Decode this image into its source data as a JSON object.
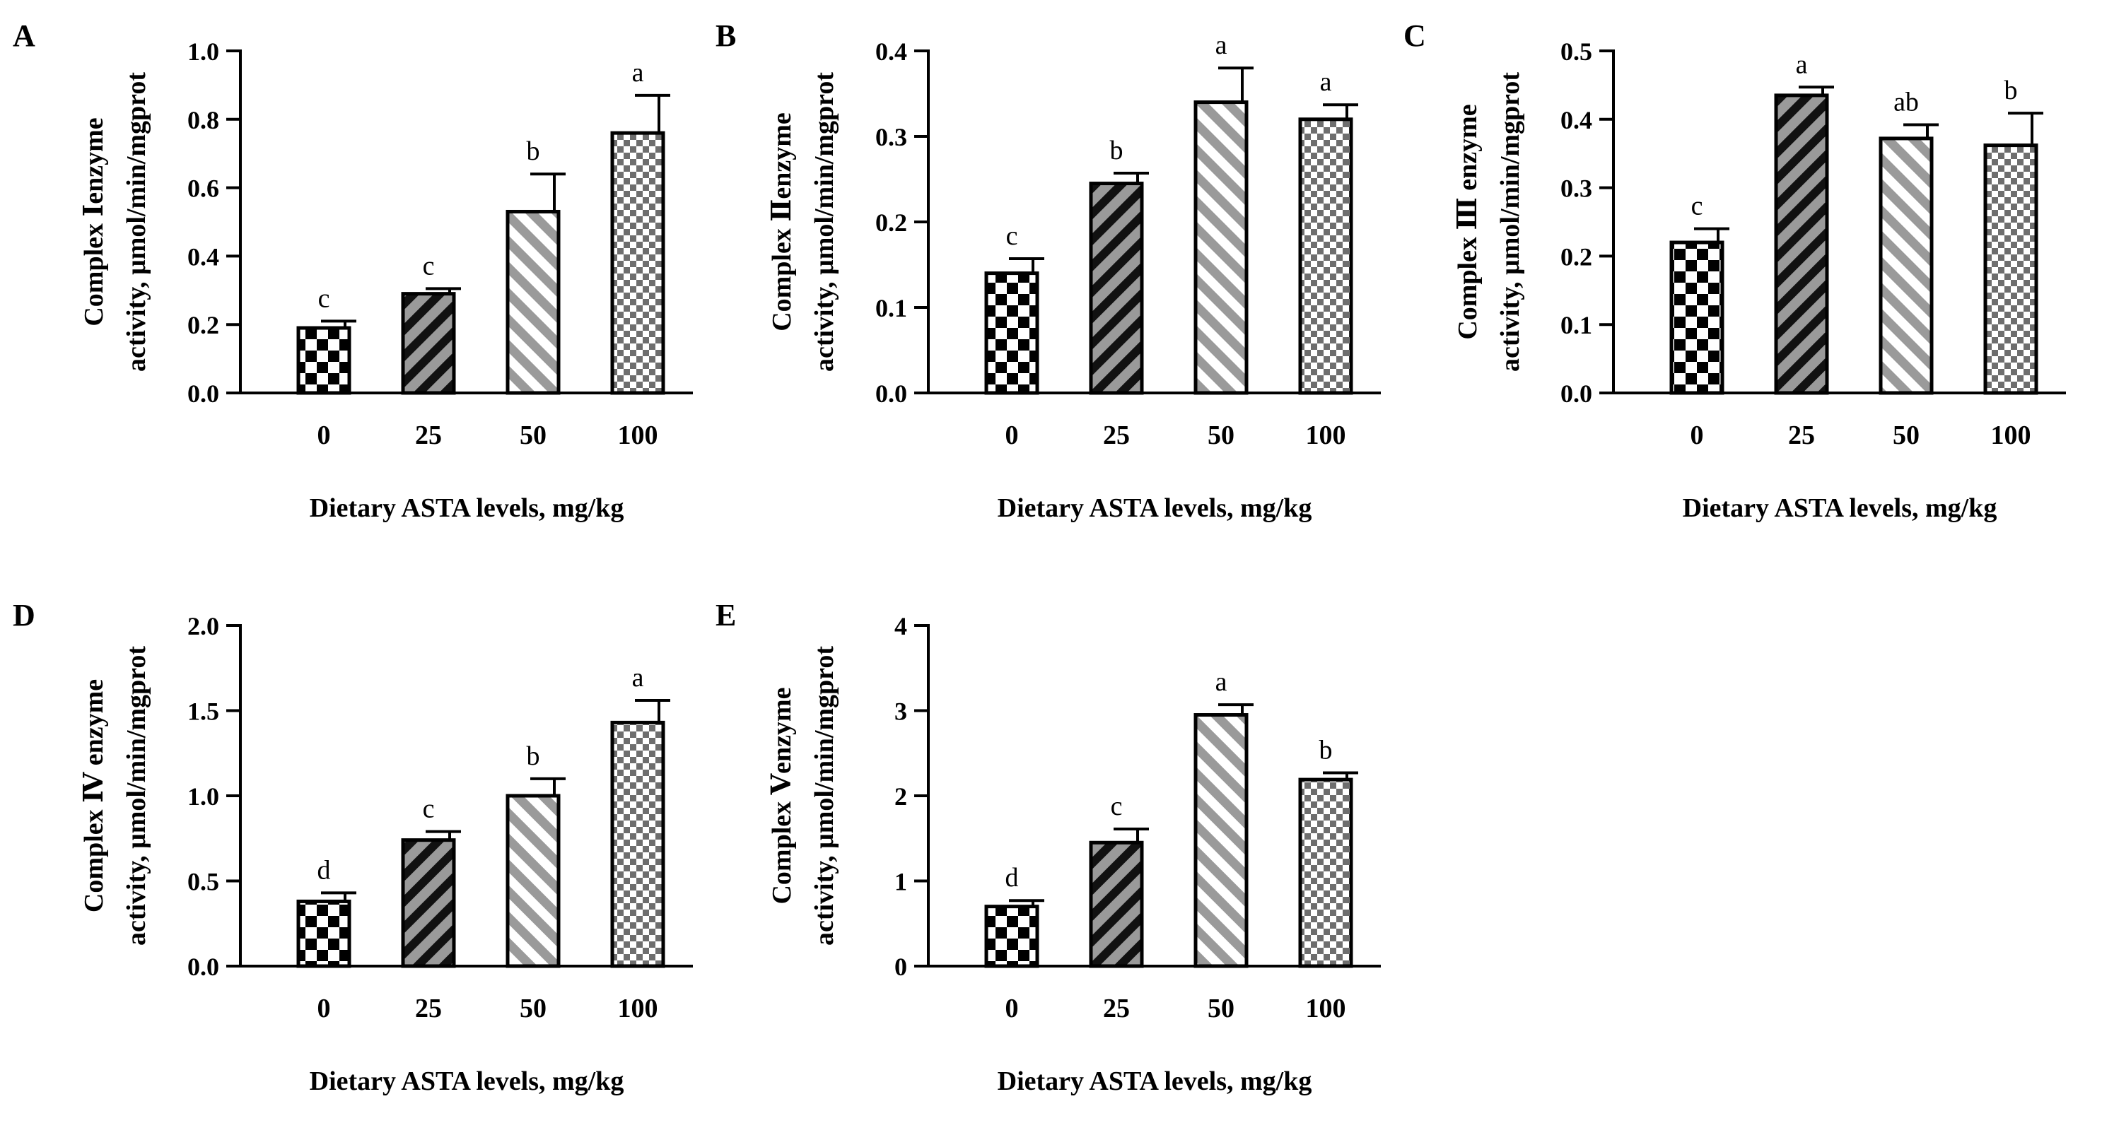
{
  "figure": {
    "x_categories": [
      "0",
      "25",
      "50",
      "100"
    ],
    "bar_patterns": [
      "checker-coarse",
      "diag-dark",
      "diag-light",
      "checker-fine"
    ],
    "colors": {
      "ink": "#000000",
      "pattern_gray": "#9a9a9a",
      "background": "#ffffff"
    }
  },
  "chart_data": [
    {
      "panel": "A",
      "type": "bar",
      "ylabel_line1": "Complex Ⅰenzyme",
      "ylabel_line2": "activity, μmol/min/mgprot",
      "xlabel": "Dietary ASTA levels, mg/kg",
      "categories": [
        "0",
        "25",
        "50",
        "100"
      ],
      "values": [
        0.19,
        0.29,
        0.53,
        0.76
      ],
      "errors": [
        0.02,
        0.015,
        0.11,
        0.11
      ],
      "letters": [
        "c",
        "c",
        "b",
        "a"
      ],
      "ylim": [
        0,
        1.0
      ],
      "yticks": [
        0.0,
        0.2,
        0.4,
        0.6,
        0.8,
        1.0
      ],
      "ytick_labels": [
        "0.0",
        "0.2",
        "0.4",
        "0.6",
        "0.8",
        "1.0"
      ]
    },
    {
      "panel": "B",
      "type": "bar",
      "ylabel_line1": "Complex Ⅱenzyme",
      "ylabel_line2": "activity, μmol/min/mgprot",
      "xlabel": "Dietary ASTA levels, mg/kg",
      "categories": [
        "0",
        "25",
        "50",
        "100"
      ],
      "values": [
        0.14,
        0.245,
        0.34,
        0.32
      ],
      "errors": [
        0.017,
        0.012,
        0.04,
        0.017
      ],
      "letters": [
        "c",
        "b",
        "a",
        "a"
      ],
      "ylim": [
        0,
        0.4
      ],
      "yticks": [
        0.0,
        0.1,
        0.2,
        0.3,
        0.4
      ],
      "ytick_labels": [
        "0.0",
        "0.1",
        "0.2",
        "0.3",
        "0.4"
      ]
    },
    {
      "panel": "C",
      "type": "bar",
      "ylabel_line1": "Complex Ⅲ enzyme",
      "ylabel_line2": "activity, μmol/min/mgprot",
      "xlabel": "Dietary ASTA levels, mg/kg",
      "categories": [
        "0",
        "25",
        "50",
        "100"
      ],
      "values": [
        0.22,
        0.435,
        0.372,
        0.362
      ],
      "errors": [
        0.02,
        0.012,
        0.02,
        0.047
      ],
      "letters": [
        "c",
        "a",
        "ab",
        "b"
      ],
      "ylim": [
        0,
        0.5
      ],
      "yticks": [
        0.0,
        0.1,
        0.2,
        0.3,
        0.4,
        0.5
      ],
      "ytick_labels": [
        "0.0",
        "0.1",
        "0.2",
        "0.3",
        "0.4",
        "0.5"
      ]
    },
    {
      "panel": "D",
      "type": "bar",
      "ylabel_line1": "Complex Ⅳ enzyme",
      "ylabel_line2": "activity, μmol/min/mgprot",
      "xlabel": "Dietary ASTA levels, mg/kg",
      "categories": [
        "0",
        "25",
        "50",
        "100"
      ],
      "values": [
        0.38,
        0.74,
        1.0,
        1.43
      ],
      "errors": [
        0.05,
        0.05,
        0.1,
        0.13
      ],
      "letters": [
        "d",
        "c",
        "b",
        "a"
      ],
      "ylim": [
        0,
        2.0
      ],
      "yticks": [
        0.0,
        0.5,
        1.0,
        1.5,
        2.0
      ],
      "ytick_labels": [
        "0.0",
        "0.5",
        "1.0",
        "1.5",
        "2.0"
      ]
    },
    {
      "panel": "E",
      "type": "bar",
      "ylabel_line1": "Complex Ⅴenzyme",
      "ylabel_line2": "activity, μmol/min/mgprot",
      "xlabel": "Dietary ASTA levels, mg/kg",
      "categories": [
        "0",
        "25",
        "50",
        "100"
      ],
      "values": [
        0.7,
        1.45,
        2.95,
        2.19
      ],
      "errors": [
        0.07,
        0.16,
        0.12,
        0.08
      ],
      "letters": [
        "d",
        "c",
        "a",
        "b"
      ],
      "ylim": [
        0,
        4
      ],
      "yticks": [
        0,
        1,
        2,
        3,
        4
      ],
      "ytick_labels": [
        "0",
        "1",
        "2",
        "3",
        "4"
      ]
    }
  ]
}
